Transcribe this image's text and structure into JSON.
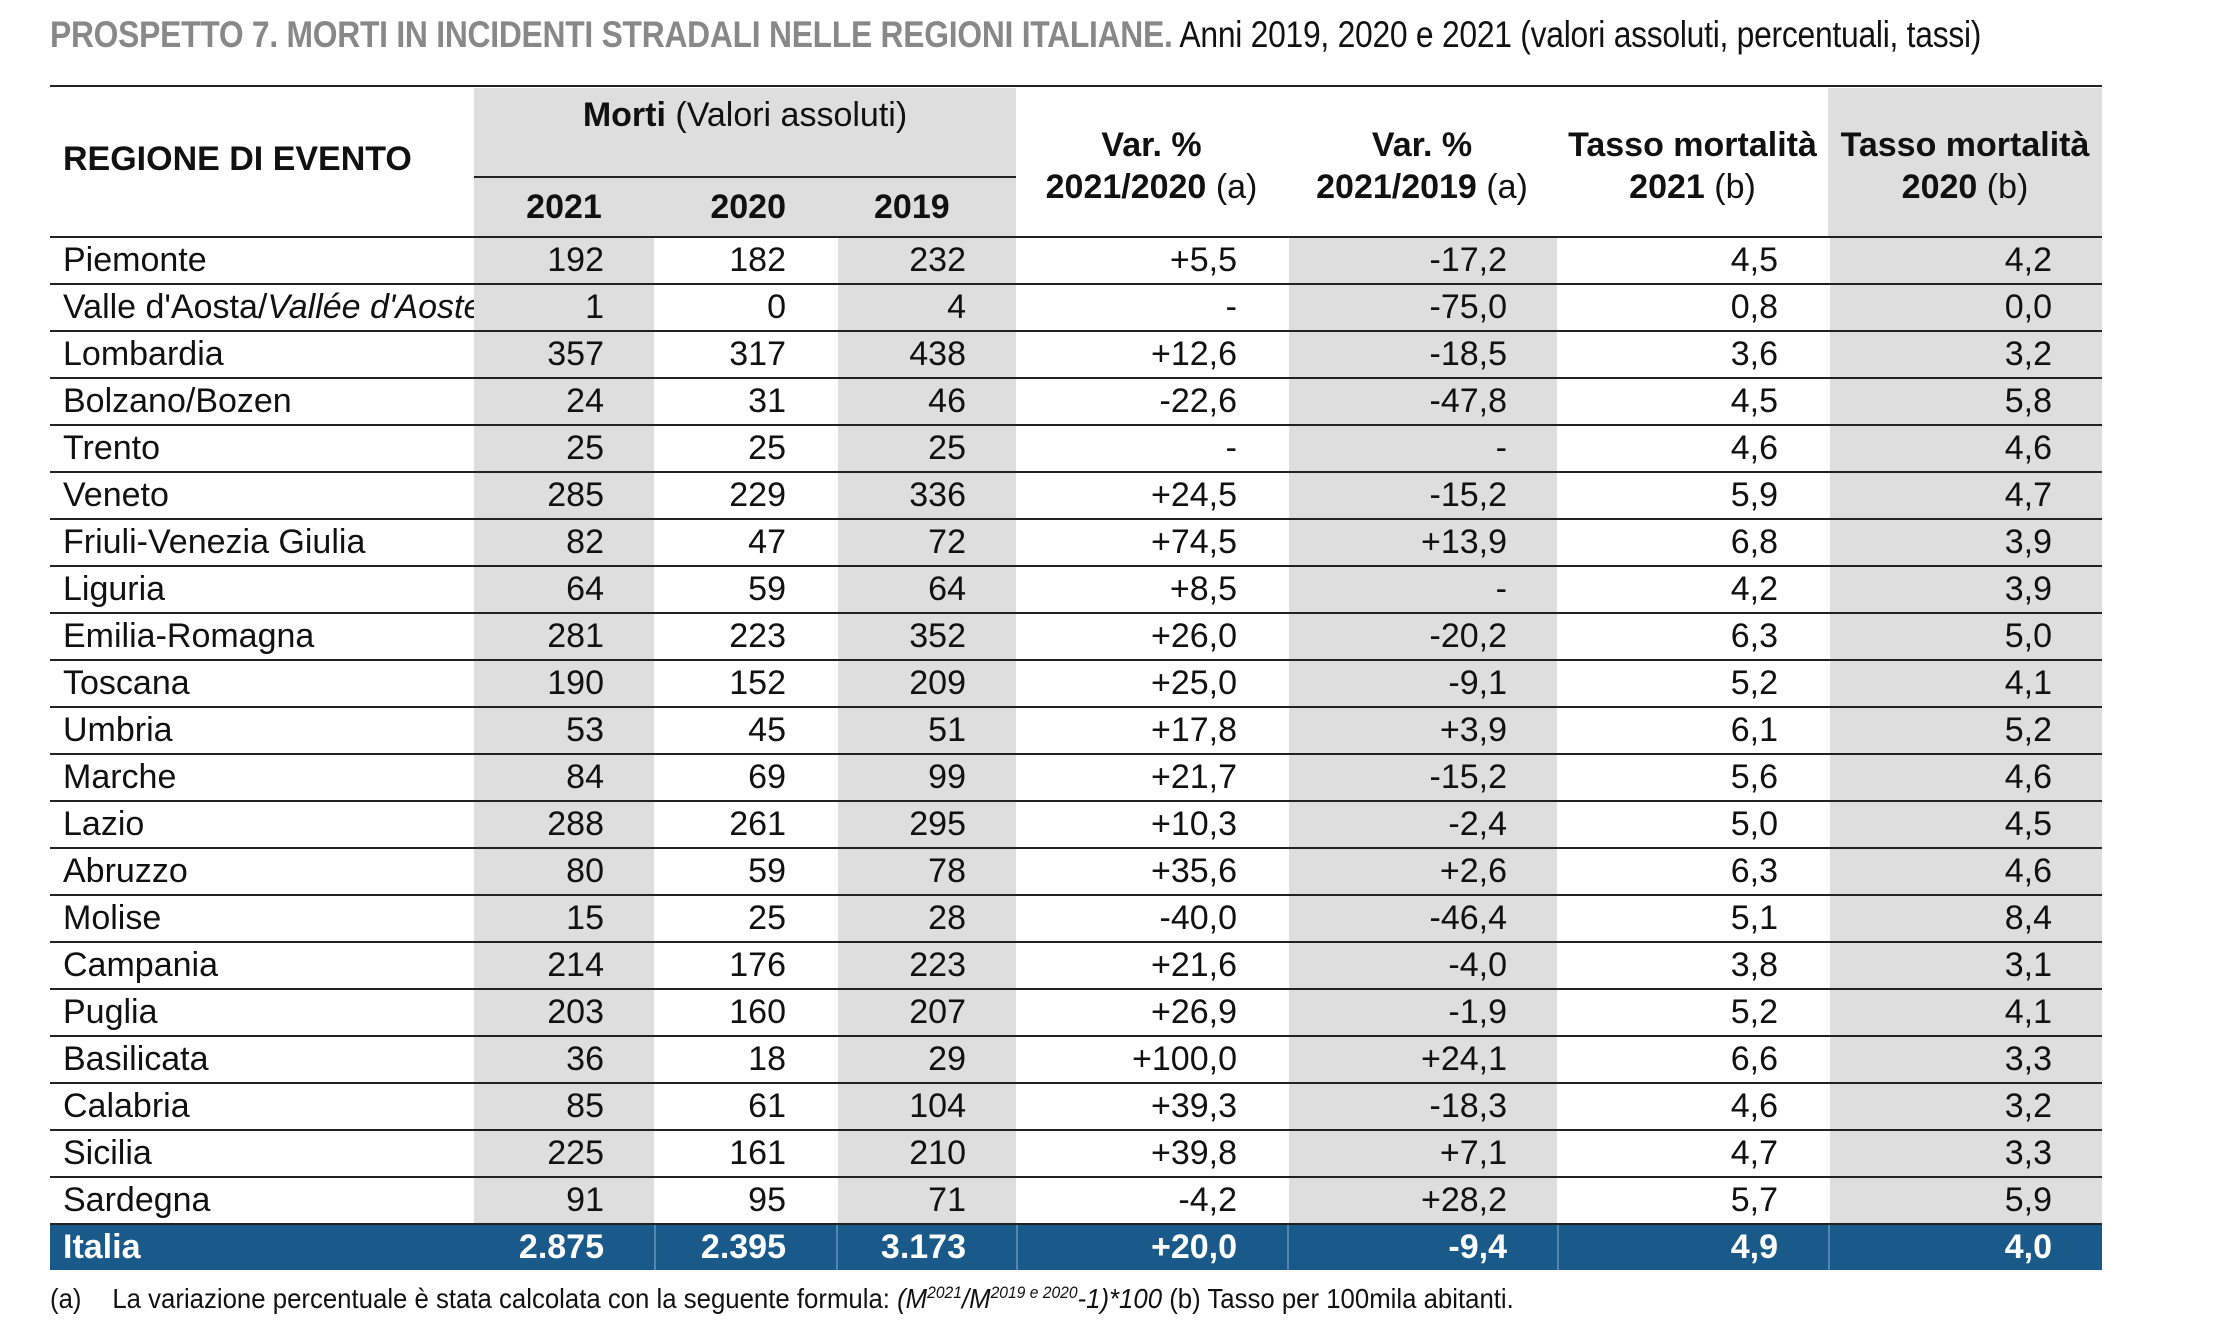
{
  "title": {
    "bold": "PROSPETTO 7. MORTI IN INCIDENTI STRADALI NELLE REGIONI ITALIANE.",
    "rest": "Anni 2019, 2020 e 2021 (valori assoluti, percentuali, tassi)"
  },
  "header": {
    "region": "REGIONE DI EVENTO",
    "morti_bold": "Morti",
    "morti_rest": "(Valori assoluti)",
    "years": [
      "2021",
      "2020",
      "2019"
    ],
    "var1_l1": "Var. %",
    "var1_l2_bold": "2021/2020",
    "var1_l2_note": "(a)",
    "var2_l1": "Var. %",
    "var2_l2_bold": "2021/2019",
    "var2_l2_note": "(a)",
    "tasso1_l1": "Tasso mortalità",
    "tasso1_l2_bold": "2021",
    "tasso1_l2_note": "(b)",
    "tasso2_l1": "Tasso mortalità",
    "tasso2_l2_bold": "2020",
    "tasso2_l2_note": "(b)"
  },
  "rows": [
    {
      "name": "Piemonte",
      "m2021": "192",
      "m2020": "182",
      "m2019": "232",
      "var1": "+5,5",
      "var2": "-17,2",
      "t2021": "4,5",
      "t2020": "4,2"
    },
    {
      "name": "Valle d'Aosta/",
      "name_it": "Vallée d'Aoste",
      "m2021": "1",
      "m2020": "0",
      "m2019": "4",
      "var1": "-",
      "var2": "-75,0",
      "t2021": "0,8",
      "t2020": "0,0"
    },
    {
      "name": "Lombardia",
      "m2021": "357",
      "m2020": "317",
      "m2019": "438",
      "var1": "+12,6",
      "var2": "-18,5",
      "t2021": "3,6",
      "t2020": "3,2"
    },
    {
      "name": "Bolzano/Bozen",
      "m2021": "24",
      "m2020": "31",
      "m2019": "46",
      "var1": "-22,6",
      "var2": "-47,8",
      "t2021": "4,5",
      "t2020": "5,8"
    },
    {
      "name": "Trento",
      "m2021": "25",
      "m2020": "25",
      "m2019": "25",
      "var1": "-",
      "var2": "-",
      "t2021": "4,6",
      "t2020": "4,6"
    },
    {
      "name": "Veneto",
      "m2021": "285",
      "m2020": "229",
      "m2019": "336",
      "var1": "+24,5",
      "var2": "-15,2",
      "t2021": "5,9",
      "t2020": "4,7"
    },
    {
      "name": "Friuli-Venezia Giulia",
      "m2021": "82",
      "m2020": "47",
      "m2019": "72",
      "var1": "+74,5",
      "var2": "+13,9",
      "t2021": "6,8",
      "t2020": "3,9"
    },
    {
      "name": "Liguria",
      "m2021": "64",
      "m2020": "59",
      "m2019": "64",
      "var1": "+8,5",
      "var2": "-",
      "t2021": "4,2",
      "t2020": "3,9"
    },
    {
      "name": "Emilia-Romagna",
      "m2021": "281",
      "m2020": "223",
      "m2019": "352",
      "var1": "+26,0",
      "var2": "-20,2",
      "t2021": "6,3",
      "t2020": "5,0"
    },
    {
      "name": "Toscana",
      "m2021": "190",
      "m2020": "152",
      "m2019": "209",
      "var1": "+25,0",
      "var2": "-9,1",
      "t2021": "5,2",
      "t2020": "4,1"
    },
    {
      "name": "Umbria",
      "m2021": "53",
      "m2020": "45",
      "m2019": "51",
      "var1": "+17,8",
      "var2": "+3,9",
      "t2021": "6,1",
      "t2020": "5,2"
    },
    {
      "name": "Marche",
      "m2021": "84",
      "m2020": "69",
      "m2019": "99",
      "var1": "+21,7",
      "var2": "-15,2",
      "t2021": "5,6",
      "t2020": "4,6"
    },
    {
      "name": "Lazio",
      "m2021": "288",
      "m2020": "261",
      "m2019": "295",
      "var1": "+10,3",
      "var2": "-2,4",
      "t2021": "5,0",
      "t2020": "4,5"
    },
    {
      "name": "Abruzzo",
      "m2021": "80",
      "m2020": "59",
      "m2019": "78",
      "var1": "+35,6",
      "var2": "+2,6",
      "t2021": "6,3",
      "t2020": "4,6"
    },
    {
      "name": "Molise",
      "m2021": "15",
      "m2020": "25",
      "m2019": "28",
      "var1": "-40,0",
      "var2": "-46,4",
      "t2021": "5,1",
      "t2020": "8,4"
    },
    {
      "name": "Campania",
      "m2021": "214",
      "m2020": "176",
      "m2019": "223",
      "var1": "+21,6",
      "var2": "-4,0",
      "t2021": "3,8",
      "t2020": "3,1"
    },
    {
      "name": "Puglia",
      "m2021": "203",
      "m2020": "160",
      "m2019": "207",
      "var1": "+26,9",
      "var2": "-1,9",
      "t2021": "5,2",
      "t2020": "4,1"
    },
    {
      "name": "Basilicata",
      "m2021": "36",
      "m2020": "18",
      "m2019": "29",
      "var1": "+100,0",
      "var2": "+24,1",
      "t2021": "6,6",
      "t2020": "3,3"
    },
    {
      "name": "Calabria",
      "m2021": "85",
      "m2020": "61",
      "m2019": "104",
      "var1": "+39,3",
      "var2": "-18,3",
      "t2021": "4,6",
      "t2020": "3,2"
    },
    {
      "name": "Sicilia",
      "m2021": "225",
      "m2020": "161",
      "m2019": "210",
      "var1": "+39,8",
      "var2": "+7,1",
      "t2021": "4,7",
      "t2020": "3,3"
    },
    {
      "name": "Sardegna",
      "m2021": "91",
      "m2020": "95",
      "m2019": "71",
      "var1": "-4,2",
      "var2": "+28,2",
      "t2021": "5,7",
      "t2020": "5,9"
    }
  ],
  "total": {
    "name": "Italia",
    "m2021": "2.875",
    "m2020": "2.395",
    "m2019": "3.173",
    "var1": "+20,0",
    "var2": "-9,4",
    "t2021": "4,9",
    "t2020": "4,0"
  },
  "footnote": {
    "label": "(a)",
    "text": "La variazione percentuale è stata calcolata con la seguente formula:",
    "formula_a": "(M",
    "sup_a": "2021",
    "formula_b": "/M",
    "sup_b": "2019 e 2020",
    "formula_c": "-1)*100",
    "tail": "(b) Tasso per 100mila abitanti."
  }
}
